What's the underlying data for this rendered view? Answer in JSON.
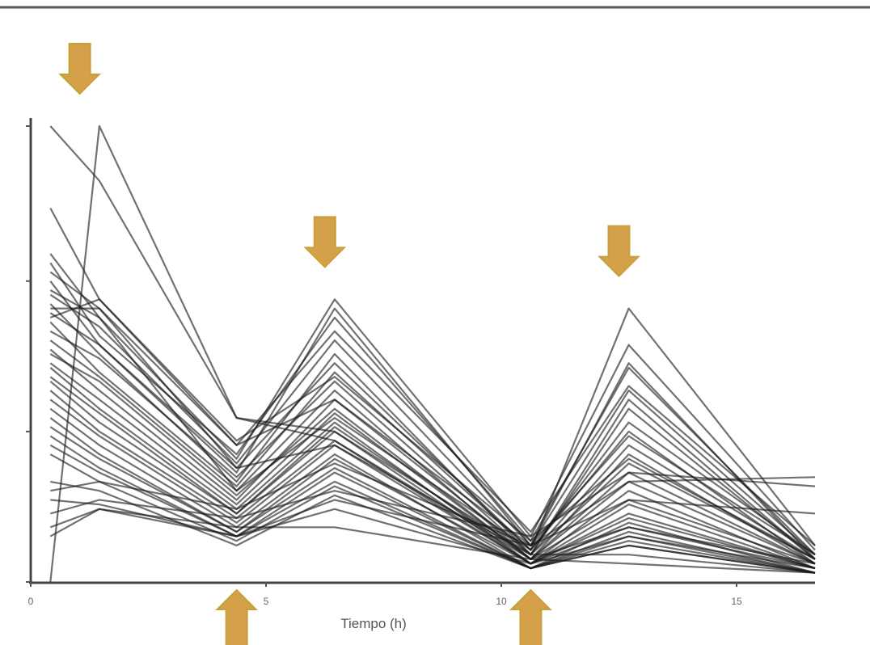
{
  "chart_data": {
    "type": "line",
    "title": "",
    "xlabel": "Tiempo (h)",
    "ylabel": "",
    "x_tick_labels": [
      {
        "x": 0,
        "label": "0"
      },
      {
        "x": 24,
        "label": "5"
      },
      {
        "x": 48,
        "label": "10"
      },
      {
        "x": 72,
        "label": "15"
      }
    ],
    "xlim": [
      0,
      80
    ],
    "ylim": [
      0,
      1
    ],
    "grid": false,
    "legend": "none",
    "line_color": "#1a1a1a",
    "arrow_color": "#d4a04a",
    "arrow_outline": "#c8a038",
    "arrows": [
      {
        "x": 5,
        "direction": "down",
        "label": "peak"
      },
      {
        "x": 30,
        "direction": "down",
        "label": "peak"
      },
      {
        "x": 60,
        "direction": "down",
        "label": "peak"
      },
      {
        "x": 21,
        "direction": "up",
        "label": "trough"
      },
      {
        "x": 51,
        "direction": "up",
        "label": "trough"
      }
    ],
    "x": [
      2,
      7,
      21,
      31,
      51,
      61,
      80
    ],
    "series": [
      {
        "values": [
          0.0,
          1.0,
          0.36,
          0.33,
          0.06,
          0.06,
          0.02
        ]
      },
      {
        "values": [
          1.0,
          0.88,
          0.36,
          0.31,
          0.05,
          0.04,
          0.02
        ]
      },
      {
        "values": [
          0.82,
          0.62,
          0.31,
          0.45,
          0.09,
          0.27,
          0.05
        ]
      },
      {
        "values": [
          0.72,
          0.58,
          0.27,
          0.62,
          0.1,
          0.52,
          0.07
        ]
      },
      {
        "values": [
          0.7,
          0.54,
          0.28,
          0.58,
          0.09,
          0.47,
          0.06
        ]
      },
      {
        "values": [
          0.68,
          0.6,
          0.3,
          0.55,
          0.11,
          0.43,
          0.08
        ]
      },
      {
        "values": [
          0.66,
          0.52,
          0.24,
          0.6,
          0.08,
          0.48,
          0.05
        ]
      },
      {
        "values": [
          0.63,
          0.56,
          0.26,
          0.53,
          0.08,
          0.42,
          0.06
        ]
      },
      {
        "values": [
          0.61,
          0.5,
          0.22,
          0.5,
          0.06,
          0.38,
          0.05
        ]
      },
      {
        "values": [
          0.59,
          0.52,
          0.25,
          0.48,
          0.07,
          0.35,
          0.06
        ]
      },
      {
        "values": [
          0.57,
          0.46,
          0.21,
          0.46,
          0.07,
          0.33,
          0.04
        ]
      },
      {
        "values": [
          0.55,
          0.49,
          0.23,
          0.44,
          0.06,
          0.3,
          0.05
        ]
      },
      {
        "values": [
          0.53,
          0.45,
          0.2,
          0.42,
          0.05,
          0.28,
          0.04
        ]
      },
      {
        "values": [
          0.51,
          0.42,
          0.18,
          0.4,
          0.06,
          0.26,
          0.05
        ]
      },
      {
        "values": [
          0.5,
          0.44,
          0.19,
          0.38,
          0.05,
          0.24,
          0.04
        ]
      },
      {
        "values": [
          0.48,
          0.4,
          0.17,
          0.37,
          0.05,
          0.22,
          0.04
        ]
      },
      {
        "values": [
          0.47,
          0.38,
          0.16,
          0.35,
          0.04,
          0.2,
          0.03
        ]
      },
      {
        "values": [
          0.45,
          0.37,
          0.15,
          0.34,
          0.05,
          0.18,
          0.04
        ]
      },
      {
        "values": [
          0.44,
          0.35,
          0.15,
          0.33,
          0.04,
          0.17,
          0.03
        ]
      },
      {
        "values": [
          0.42,
          0.33,
          0.14,
          0.31,
          0.04,
          0.15,
          0.03
        ]
      },
      {
        "values": [
          0.4,
          0.32,
          0.13,
          0.3,
          0.04,
          0.14,
          0.03
        ]
      },
      {
        "values": [
          0.38,
          0.3,
          0.12,
          0.28,
          0.03,
          0.13,
          0.02
        ]
      },
      {
        "values": [
          0.36,
          0.28,
          0.11,
          0.27,
          0.04,
          0.12,
          0.03
        ]
      },
      {
        "values": [
          0.34,
          0.27,
          0.11,
          0.25,
          0.03,
          0.11,
          0.02
        ]
      },
      {
        "values": [
          0.32,
          0.25,
          0.1,
          0.24,
          0.03,
          0.1,
          0.02
        ]
      },
      {
        "values": [
          0.3,
          0.24,
          0.1,
          0.22,
          0.03,
          0.09,
          0.02
        ]
      },
      {
        "values": [
          0.28,
          0.22,
          0.09,
          0.21,
          0.03,
          0.08,
          0.02
        ]
      },
      {
        "values": [
          0.22,
          0.2,
          0.08,
          0.19,
          0.03,
          0.08,
          0.02
        ]
      },
      {
        "values": [
          0.18,
          0.17,
          0.1,
          0.16,
          0.04,
          0.1,
          0.03
        ]
      },
      {
        "values": [
          0.12,
          0.16,
          0.12,
          0.12,
          0.05,
          0.12,
          0.04
        ]
      },
      {
        "values": [
          0.1,
          0.16,
          0.1,
          0.18,
          0.08,
          0.22,
          0.23
        ]
      },
      {
        "values": [
          0.15,
          0.18,
          0.14,
          0.2,
          0.1,
          0.24,
          0.21
        ]
      },
      {
        "values": [
          0.2,
          0.22,
          0.16,
          0.26,
          0.08,
          0.18,
          0.15
        ]
      },
      {
        "values": [
          0.64,
          0.58,
          0.2,
          0.36,
          0.07,
          0.6,
          0.08
        ]
      },
      {
        "values": [
          0.6,
          0.6,
          0.25,
          0.3,
          0.06,
          0.4,
          0.05
        ]
      },
      {
        "values": [
          0.58,
          0.62,
          0.3,
          0.4,
          0.08,
          0.32,
          0.06
        ]
      }
    ]
  }
}
